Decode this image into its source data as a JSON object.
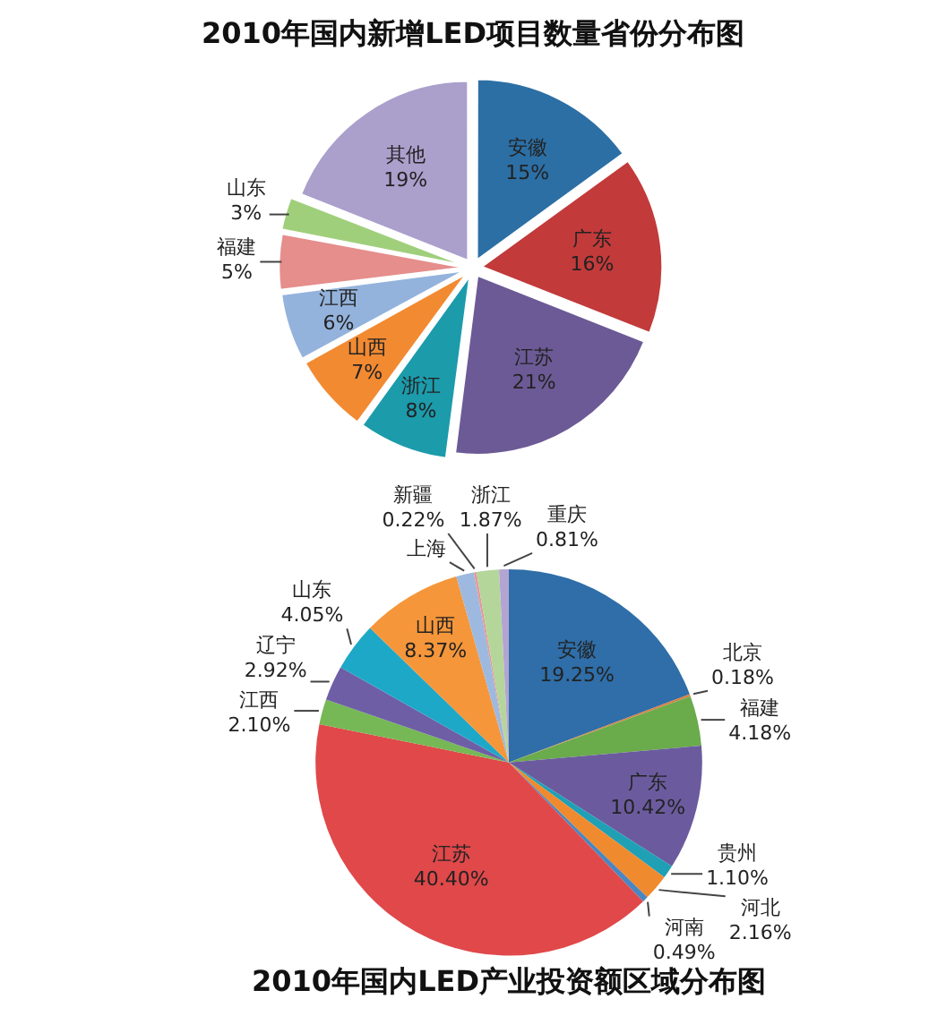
{
  "chart_data": [
    {
      "type": "pie",
      "title": "2010年国内新增LED项目数量省份分布图",
      "categories": [
        "安徽",
        "广东",
        "江苏",
        "浙江",
        "山西",
        "江西",
        "福建",
        "山东",
        "其他"
      ],
      "values": [
        15,
        16,
        21,
        8,
        7,
        6,
        5,
        3,
        19
      ],
      "value_labels": [
        "15%",
        "16%",
        "21%",
        "8%",
        "7%",
        "6%",
        "5%",
        "3%",
        "19%"
      ],
      "colors": [
        "#2c6fa5",
        "#c23a3a",
        "#6c5a96",
        "#1c9bab",
        "#f28a32",
        "#94b3dc",
        "#e58e8c",
        "#a0cf7c",
        "#ab9fcc"
      ]
    },
    {
      "type": "pie",
      "title": "2010年国内LED产业投资额区域分布图",
      "categories": [
        "安徽",
        "北京",
        "福建",
        "广东",
        "贵州",
        "河北",
        "河南",
        "江苏",
        "江西",
        "辽宁",
        "山东",
        "山西",
        "上海",
        "新疆",
        "浙江",
        "重庆"
      ],
      "values": [
        19.25,
        0.18,
        4.18,
        10.42,
        1.1,
        2.16,
        0.49,
        40.4,
        2.1,
        2.92,
        4.05,
        8.37,
        1.48,
        0.22,
        1.87,
        0.81
      ],
      "value_labels": [
        "19.25%",
        "0.18%",
        "4.18%",
        "10.42%",
        "1.10%",
        "2.16%",
        "0.49%",
        "40.40%",
        "2.10%",
        "2.92%",
        "4.05%",
        "8.37%",
        null,
        "0.22%",
        "1.87%",
        "0.81%"
      ],
      "colors": [
        "#2f6ea8",
        "#d98040",
        "#6aab4c",
        "#6b5b9e",
        "#1fa0b5",
        "#f08a2e",
        "#4a86c0",
        "#e0484a",
        "#76b855",
        "#6e5ea6",
        "#1ea8c8",
        "#f5963a",
        "#9db9df",
        "#e39a9a",
        "#b4d69a",
        "#b3a4d2"
      ]
    }
  ]
}
